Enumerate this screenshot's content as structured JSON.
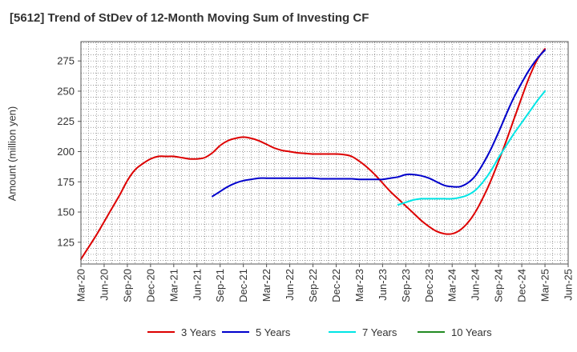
{
  "chart_data": {
    "type": "line",
    "title": "[5612]  Trend of StDev of 12-Month Moving Sum of Investing CF",
    "ylabel": "Amount (million yen)",
    "xlabel": "",
    "x_ticks": [
      "Mar-20",
      "Jun-20",
      "Sep-20",
      "Dec-20",
      "Mar-21",
      "Jun-21",
      "Sep-21",
      "Dec-21",
      "Mar-22",
      "Jun-22",
      "Sep-22",
      "Dec-22",
      "Mar-23",
      "Jun-23",
      "Sep-23",
      "Dec-23",
      "Mar-24",
      "Jun-24",
      "Sep-24",
      "Dec-24",
      "Mar-25",
      "Jun-25"
    ],
    "y_ticks": [
      125,
      150,
      175,
      200,
      225,
      250,
      275
    ],
    "ylim": [
      107,
      291
    ],
    "grid": true,
    "legend_position": "bottom",
    "series": [
      {
        "name": "3 Years",
        "color": "#dd0000",
        "values": [
          [
            "2020-03",
            111
          ],
          [
            "2020-04",
            121
          ],
          [
            "2020-05",
            131
          ],
          [
            "2020-06",
            142
          ],
          [
            "2020-07",
            153
          ],
          [
            "2020-08",
            164
          ],
          [
            "2020-09",
            176
          ],
          [
            "2020-10",
            185
          ],
          [
            "2020-11",
            190
          ],
          [
            "2020-12",
            194
          ],
          [
            "2021-01",
            196
          ],
          [
            "2021-02",
            196
          ],
          [
            "2021-03",
            196
          ],
          [
            "2021-04",
            195
          ],
          [
            "2021-05",
            194
          ],
          [
            "2021-06",
            194
          ],
          [
            "2021-07",
            195
          ],
          [
            "2021-08",
            199
          ],
          [
            "2021-09",
            205
          ],
          [
            "2021-10",
            209
          ],
          [
            "2021-11",
            211
          ],
          [
            "2021-12",
            212
          ],
          [
            "2022-01",
            211
          ],
          [
            "2022-02",
            209
          ],
          [
            "2022-03",
            206
          ],
          [
            "2022-04",
            203
          ],
          [
            "2022-05",
            201
          ],
          [
            "2022-06",
            200
          ],
          [
            "2022-07",
            199
          ],
          [
            "2022-08",
            198.5
          ],
          [
            "2022-09",
            198
          ],
          [
            "2022-10",
            198
          ],
          [
            "2022-11",
            198
          ],
          [
            "2022-12",
            198
          ],
          [
            "2023-01",
            197.5
          ],
          [
            "2023-02",
            196
          ],
          [
            "2023-03",
            192
          ],
          [
            "2023-04",
            187
          ],
          [
            "2023-05",
            181
          ],
          [
            "2023-06",
            174
          ],
          [
            "2023-07",
            167
          ],
          [
            "2023-08",
            161
          ],
          [
            "2023-09",
            155
          ],
          [
            "2023-10",
            149
          ],
          [
            "2023-11",
            143
          ],
          [
            "2023-12",
            138
          ],
          [
            "2024-01",
            134
          ],
          [
            "2024-02",
            132
          ],
          [
            "2024-03",
            132
          ],
          [
            "2024-04",
            135
          ],
          [
            "2024-05",
            141
          ],
          [
            "2024-06",
            150
          ],
          [
            "2024-07",
            162
          ],
          [
            "2024-08",
            176
          ],
          [
            "2024-09",
            192
          ],
          [
            "2024-10",
            209
          ],
          [
            "2024-11",
            227
          ],
          [
            "2024-12",
            245
          ],
          [
            "2025-01",
            262
          ],
          [
            "2025-02",
            276
          ],
          [
            "2025-03",
            285
          ]
        ]
      },
      {
        "name": "5 Years",
        "color": "#0000cc",
        "values": [
          [
            "2021-08",
            163
          ],
          [
            "2021-09",
            167
          ],
          [
            "2021-10",
            171
          ],
          [
            "2021-11",
            174
          ],
          [
            "2021-12",
            176
          ],
          [
            "2022-01",
            177
          ],
          [
            "2022-02",
            178
          ],
          [
            "2022-03",
            178
          ],
          [
            "2022-04",
            178
          ],
          [
            "2022-05",
            178
          ],
          [
            "2022-06",
            178
          ],
          [
            "2022-07",
            178
          ],
          [
            "2022-08",
            178
          ],
          [
            "2022-09",
            178
          ],
          [
            "2022-10",
            177.5
          ],
          [
            "2022-11",
            177.5
          ],
          [
            "2022-12",
            177.5
          ],
          [
            "2023-01",
            177.5
          ],
          [
            "2023-02",
            177.5
          ],
          [
            "2023-03",
            177
          ],
          [
            "2023-04",
            177
          ],
          [
            "2023-05",
            177
          ],
          [
            "2023-06",
            177
          ],
          [
            "2023-07",
            178
          ],
          [
            "2023-08",
            179
          ],
          [
            "2023-09",
            181
          ],
          [
            "2023-10",
            181
          ],
          [
            "2023-11",
            180
          ],
          [
            "2023-12",
            178
          ],
          [
            "2024-01",
            175
          ],
          [
            "2024-02",
            172
          ],
          [
            "2024-03",
            171
          ],
          [
            "2024-04",
            171
          ],
          [
            "2024-05",
            174
          ],
          [
            "2024-06",
            180
          ],
          [
            "2024-07",
            190
          ],
          [
            "2024-08",
            202
          ],
          [
            "2024-09",
            216
          ],
          [
            "2024-10",
            231
          ],
          [
            "2024-11",
            245
          ],
          [
            "2024-12",
            257
          ],
          [
            "2025-01",
            268
          ],
          [
            "2025-02",
            277
          ],
          [
            "2025-03",
            284
          ]
        ]
      },
      {
        "name": "7 Years",
        "color": "#00e5e5",
        "values": [
          [
            "2023-08",
            156
          ],
          [
            "2023-09",
            158
          ],
          [
            "2023-10",
            160
          ],
          [
            "2023-11",
            161
          ],
          [
            "2023-12",
            161
          ],
          [
            "2024-01",
            161
          ],
          [
            "2024-02",
            161
          ],
          [
            "2024-03",
            161
          ],
          [
            "2024-04",
            162
          ],
          [
            "2024-05",
            164
          ],
          [
            "2024-06",
            168
          ],
          [
            "2024-07",
            175
          ],
          [
            "2024-08",
            184
          ],
          [
            "2024-09",
            195
          ],
          [
            "2024-10",
            205
          ],
          [
            "2024-11",
            215
          ],
          [
            "2024-12",
            224
          ],
          [
            "2025-01",
            233
          ],
          [
            "2025-02",
            242
          ],
          [
            "2025-03",
            250
          ]
        ]
      },
      {
        "name": "10 Years",
        "color": "#228b22",
        "values": []
      }
    ]
  }
}
